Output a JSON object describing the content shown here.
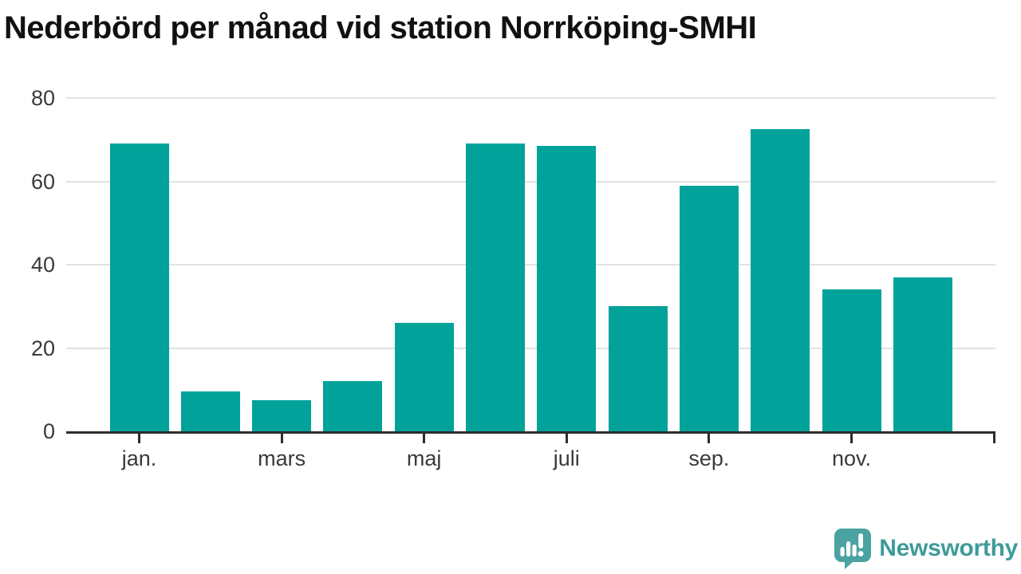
{
  "title": "Nederbörd per månad vid station Norrköping-SMHI",
  "branding": {
    "logo_text": "Newsworthy",
    "logo_icon": "speech-bubble-bar-chart-exclamation"
  },
  "colors": {
    "bar": "#00a29a",
    "grid": "#e2e2e2",
    "axis": "#2d2d2d",
    "tick_label": "#3a3a3a",
    "title": "#111111",
    "logo": "#3d9b9a",
    "logo_bubble": "#4aa3a2",
    "background": "#ffffff"
  },
  "chart_data": {
    "type": "bar",
    "title": "Nederbörd per månad vid station Norrköping-SMHI",
    "values": [
      69,
      9.5,
      7.5,
      12,
      26,
      69,
      68.5,
      30,
      59,
      72.5,
      34,
      37
    ],
    "bar_count": 12,
    "x_tick_labels": [
      "jan.",
      "mars",
      "maj",
      "juli",
      "sep.",
      "nov."
    ],
    "x_tick_bar_indexes": [
      0,
      2,
      4,
      6,
      8,
      10
    ],
    "y_ticks": [
      0,
      20,
      40,
      60,
      80
    ],
    "ylim": [
      0,
      80
    ],
    "xlabel": "",
    "ylabel": "",
    "grid": "horizontal",
    "legend": "none"
  }
}
